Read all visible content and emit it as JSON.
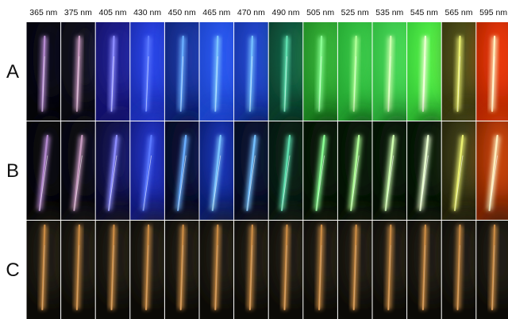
{
  "columns": [
    "365 nm",
    "375 nm",
    "405 nm",
    "430 nm",
    "450 nm",
    "465 nm",
    "470 nm",
    "490 nm",
    "505 nm",
    "525 nm",
    "535 nm",
    "545 nm",
    "565 nm",
    "595 nm"
  ],
  "rows": [
    "A",
    "B",
    "C"
  ]
}
